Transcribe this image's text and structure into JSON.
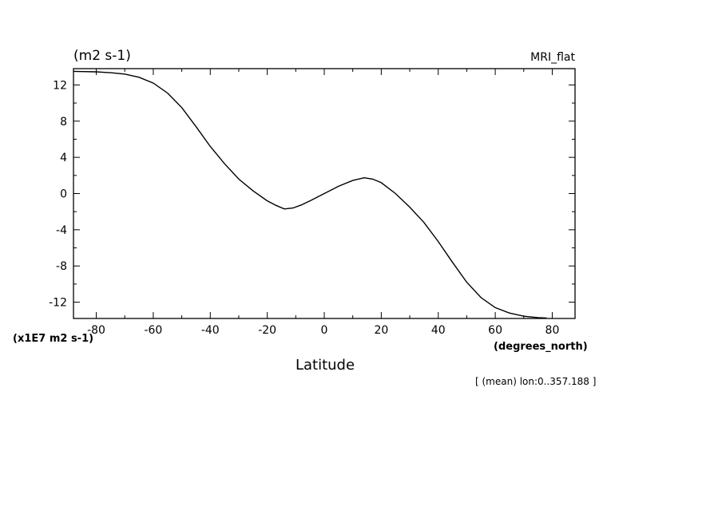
{
  "chart_data": {
    "type": "line",
    "title": "(m2 s-1)",
    "model_label": "MRI_flat",
    "scale_label": "(x1E7 m2 s-1)",
    "xunit_label": "(degrees_north)",
    "xlabel": "Latitude",
    "footnote": "[ (mean) lon:0..357.188 ]",
    "xlim": [
      -88,
      88
    ],
    "ylim": [
      -13.8,
      13.8
    ],
    "xticks": [
      -80,
      -60,
      -40,
      -20,
      0,
      20,
      40,
      60,
      80
    ],
    "xtick_labels": [
      "-80",
      "-60",
      "-40",
      "-20",
      "0",
      "20",
      "40",
      "60",
      "80"
    ],
    "yticks": [
      -12,
      -8,
      -4,
      0,
      4,
      8,
      12
    ],
    "ytick_labels": [
      "-12",
      "-8",
      "-4",
      "0",
      "4",
      "8",
      "12"
    ],
    "grid": false,
    "series": [
      {
        "x": [
          -88,
          -80,
          -75,
          -70,
          -65,
          -60,
          -55,
          -50,
          -45,
          -40,
          -35,
          -30,
          -25,
          -20,
          -17,
          -14,
          -11,
          -8,
          -5,
          0,
          5,
          10,
          14,
          17,
          20,
          25,
          30,
          35,
          40,
          45,
          50,
          55,
          60,
          65,
          70,
          75,
          78
        ],
        "y": [
          13.5,
          13.45,
          13.35,
          13.2,
          12.85,
          12.2,
          11.1,
          9.5,
          7.4,
          5.2,
          3.3,
          1.6,
          0.3,
          -0.8,
          -1.3,
          -1.7,
          -1.6,
          -1.25,
          -0.8,
          0.0,
          0.8,
          1.45,
          1.75,
          1.6,
          1.2,
          0.0,
          -1.5,
          -3.2,
          -5.3,
          -7.6,
          -9.8,
          -11.5,
          -12.6,
          -13.2,
          -13.55,
          -13.7,
          -13.75
        ],
        "color": "#000000"
      }
    ]
  }
}
